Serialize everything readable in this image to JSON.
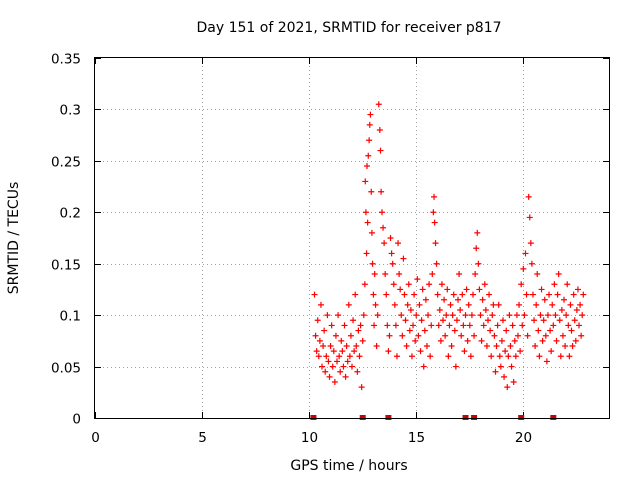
{
  "chart_data": {
    "type": "scatter",
    "title": "Day 151 of 2021, SRMTID for receiver p817",
    "xlabel": "GPS time / hours",
    "ylabel": "SRMTID / TECUs",
    "xlim": [
      0,
      24
    ],
    "ylim": [
      0,
      0.35
    ],
    "x_ticks": [
      0,
      5,
      10,
      15,
      20
    ],
    "x_tick_labels": [
      "0",
      "5",
      "10",
      "15",
      "20"
    ],
    "y_ticks": [
      0,
      0.05,
      0.1,
      0.15,
      0.2,
      0.25,
      0.3,
      0.35
    ],
    "y_tick_labels": [
      "0",
      "0.05",
      "0.1",
      "0.15",
      "0.2",
      "0.25",
      "0.3",
      "0.35"
    ],
    "grid": true,
    "marker": "+",
    "series_color": "#ff0000",
    "marker_color_dark": "#cc0000",
    "baseline_markers": [
      10.2,
      12.5,
      13.7,
      17.3,
      17.7,
      19.9,
      21.4
    ],
    "series": [
      {
        "name": "SRMTID",
        "points": [
          [
            10.25,
            0.12
          ],
          [
            10.3,
            0.08
          ],
          [
            10.35,
            0.065
          ],
          [
            10.4,
            0.095
          ],
          [
            10.45,
            0.06
          ],
          [
            10.5,
            0.075
          ],
          [
            10.55,
            0.11
          ],
          [
            10.6,
            0.05
          ],
          [
            10.65,
            0.07
          ],
          [
            10.7,
            0.085
          ],
          [
            10.75,
            0.045
          ],
          [
            10.8,
            0.06
          ],
          [
            10.85,
            0.1
          ],
          [
            10.9,
            0.055
          ],
          [
            10.95,
            0.04
          ],
          [
            11.0,
            0.07
          ],
          [
            11.05,
            0.09
          ],
          [
            11.1,
            0.05
          ],
          [
            11.15,
            0.065
          ],
          [
            11.2,
            0.035
          ],
          [
            11.25,
            0.08
          ],
          [
            11.3,
            0.055
          ],
          [
            11.35,
            0.1
          ],
          [
            11.4,
            0.06
          ],
          [
            11.45,
            0.045
          ],
          [
            11.5,
            0.075
          ],
          [
            11.55,
            0.065
          ],
          [
            11.6,
            0.05
          ],
          [
            11.65,
            0.09
          ],
          [
            11.7,
            0.04
          ],
          [
            11.75,
            0.07
          ],
          [
            11.8,
            0.055
          ],
          [
            11.85,
            0.11
          ],
          [
            11.9,
            0.06
          ],
          [
            11.95,
            0.08
          ],
          [
            12.0,
            0.05
          ],
          [
            12.05,
            0.095
          ],
          [
            12.1,
            0.065
          ],
          [
            12.15,
            0.12
          ],
          [
            12.2,
            0.07
          ],
          [
            12.25,
            0.045
          ],
          [
            12.3,
            0.085
          ],
          [
            12.35,
            0.06
          ],
          [
            12.4,
            0.09
          ],
          [
            12.45,
            0.03
          ],
          [
            12.5,
            0.075
          ],
          [
            12.55,
            0.1
          ],
          [
            12.6,
            0.13
          ],
          [
            12.62,
            0.23
          ],
          [
            12.65,
            0.2
          ],
          [
            12.68,
            0.16
          ],
          [
            12.7,
            0.245
          ],
          [
            12.73,
            0.19
          ],
          [
            12.76,
            0.255
          ],
          [
            12.8,
            0.27
          ],
          [
            12.83,
            0.285
          ],
          [
            12.86,
            0.295
          ],
          [
            12.9,
            0.22
          ],
          [
            12.93,
            0.18
          ],
          [
            12.96,
            0.15
          ],
          [
            13.0,
            0.12
          ],
          [
            13.03,
            0.09
          ],
          [
            13.06,
            0.14
          ],
          [
            13.1,
            0.11
          ],
          [
            13.15,
            0.07
          ],
          [
            13.2,
            0.1
          ],
          [
            13.25,
            0.305
          ],
          [
            13.3,
            0.28
          ],
          [
            13.33,
            0.26
          ],
          [
            13.36,
            0.22
          ],
          [
            13.4,
            0.2
          ],
          [
            13.45,
            0.185
          ],
          [
            13.5,
            0.17
          ],
          [
            13.55,
            0.14
          ],
          [
            13.6,
            0.12
          ],
          [
            13.65,
            0.09
          ],
          [
            13.7,
            0.065
          ],
          [
            13.75,
            0.08
          ],
          [
            13.8,
            0.175
          ],
          [
            13.85,
            0.16
          ],
          [
            13.9,
            0.15
          ],
          [
            13.95,
            0.13
          ],
          [
            14.0,
            0.11
          ],
          [
            14.05,
            0.09
          ],
          [
            14.1,
            0.06
          ],
          [
            14.15,
            0.17
          ],
          [
            14.2,
            0.14
          ],
          [
            14.25,
            0.125
          ],
          [
            14.3,
            0.1
          ],
          [
            14.35,
            0.08
          ],
          [
            14.4,
            0.155
          ],
          [
            14.45,
            0.12
          ],
          [
            14.5,
            0.095
          ],
          [
            14.55,
            0.07
          ],
          [
            14.6,
            0.11
          ],
          [
            14.65,
            0.13
          ],
          [
            14.7,
            0.085
          ],
          [
            14.75,
            0.105
          ],
          [
            14.8,
            0.06
          ],
          [
            14.85,
            0.09
          ],
          [
            14.9,
            0.12
          ],
          [
            14.95,
            0.075
          ],
          [
            15.0,
            0.1
          ],
          [
            15.05,
            0.135
          ],
          [
            15.1,
            0.08
          ],
          [
            15.15,
            0.11
          ],
          [
            15.2,
            0.065
          ],
          [
            15.25,
            0.095
          ],
          [
            15.3,
            0.125
          ],
          [
            15.35,
            0.05
          ],
          [
            15.4,
            0.085
          ],
          [
            15.45,
            0.115
          ],
          [
            15.5,
            0.07
          ],
          [
            15.55,
            0.1
          ],
          [
            15.6,
            0.13
          ],
          [
            15.65,
            0.06
          ],
          [
            15.7,
            0.09
          ],
          [
            15.75,
            0.14
          ],
          [
            15.8,
            0.2
          ],
          [
            15.83,
            0.215
          ],
          [
            15.86,
            0.19
          ],
          [
            15.9,
            0.17
          ],
          [
            15.95,
            0.15
          ],
          [
            16.0,
            0.12
          ],
          [
            16.05,
            0.09
          ],
          [
            16.1,
            0.105
          ],
          [
            16.15,
            0.075
          ],
          [
            16.2,
            0.13
          ],
          [
            16.25,
            0.095
          ],
          [
            16.3,
            0.115
          ],
          [
            16.35,
            0.08
          ],
          [
            16.4,
            0.1
          ],
          [
            16.45,
            0.125
          ],
          [
            16.5,
            0.06
          ],
          [
            16.55,
            0.09
          ],
          [
            16.6,
            0.11
          ],
          [
            16.65,
            0.07
          ],
          [
            16.7,
            0.1
          ],
          [
            16.75,
            0.12
          ],
          [
            16.8,
            0.085
          ],
          [
            16.85,
            0.05
          ],
          [
            16.9,
            0.095
          ],
          [
            16.95,
            0.115
          ],
          [
            17.0,
            0.14
          ],
          [
            17.05,
            0.105
          ],
          [
            17.1,
            0.08
          ],
          [
            17.15,
            0.12
          ],
          [
            17.2,
            0.09
          ],
          [
            17.25,
            0.065
          ],
          [
            17.3,
            0.1
          ],
          [
            17.35,
            0.125
          ],
          [
            17.4,
            0.075
          ],
          [
            17.45,
            0.11
          ],
          [
            17.5,
            0.09
          ],
          [
            17.55,
            0.06
          ],
          [
            17.6,
            0.1
          ],
          [
            17.65,
            0.12
          ],
          [
            17.7,
            0.08
          ],
          [
            17.75,
            0.14
          ],
          [
            17.8,
            0.165
          ],
          [
            17.85,
            0.18
          ],
          [
            17.9,
            0.15
          ],
          [
            17.95,
            0.125
          ],
          [
            18.0,
            0.1
          ],
          [
            18.05,
            0.075
          ],
          [
            18.1,
            0.115
          ],
          [
            18.15,
            0.09
          ],
          [
            18.2,
            0.13
          ],
          [
            18.25,
            0.105
          ],
          [
            18.3,
            0.07
          ],
          [
            18.35,
            0.095
          ],
          [
            18.4,
            0.12
          ],
          [
            18.45,
            0.085
          ],
          [
            18.5,
            0.06
          ],
          [
            18.55,
            0.1
          ],
          [
            18.6,
            0.11
          ],
          [
            18.65,
            0.08
          ],
          [
            18.7,
            0.045
          ],
          [
            18.75,
            0.07
          ],
          [
            18.8,
            0.09
          ],
          [
            18.85,
            0.11
          ],
          [
            18.9,
            0.06
          ],
          [
            18.95,
            0.05
          ],
          [
            19.0,
            0.075
          ],
          [
            19.05,
            0.095
          ],
          [
            19.1,
            0.04
          ],
          [
            19.15,
            0.065
          ],
          [
            19.2,
            0.085
          ],
          [
            19.25,
            0.03
          ],
          [
            19.3,
            0.06
          ],
          [
            19.35,
            0.1
          ],
          [
            19.4,
            0.07
          ],
          [
            19.45,
            0.05
          ],
          [
            19.5,
            0.09
          ],
          [
            19.55,
            0.035
          ],
          [
            19.6,
            0.075
          ],
          [
            19.65,
            0.06
          ],
          [
            19.7,
            0.1
          ],
          [
            19.75,
            0.08
          ],
          [
            19.8,
            0.11
          ],
          [
            19.85,
            0.065
          ],
          [
            19.9,
            0.13
          ],
          [
            19.95,
            0.09
          ],
          [
            20.0,
            0.145
          ],
          [
            20.05,
            0.1
          ],
          [
            20.1,
            0.16
          ],
          [
            20.15,
            0.12
          ],
          [
            20.2,
            0.08
          ],
          [
            20.25,
            0.215
          ],
          [
            20.3,
            0.195
          ],
          [
            20.35,
            0.17
          ],
          [
            20.4,
            0.15
          ],
          [
            20.45,
            0.12
          ],
          [
            20.5,
            0.095
          ],
          [
            20.55,
            0.07
          ],
          [
            20.6,
            0.11
          ],
          [
            20.65,
            0.14
          ],
          [
            20.7,
            0.085
          ],
          [
            20.75,
            0.06
          ],
          [
            20.8,
            0.1
          ],
          [
            20.85,
            0.125
          ],
          [
            20.9,
            0.075
          ],
          [
            20.95,
            0.095
          ],
          [
            21.0,
            0.115
          ],
          [
            21.05,
            0.08
          ],
          [
            21.1,
            0.055
          ],
          [
            21.15,
            0.1
          ],
          [
            21.2,
            0.12
          ],
          [
            21.25,
            0.085
          ],
          [
            21.3,
            0.065
          ],
          [
            21.35,
            0.11
          ],
          [
            21.4,
            0.09
          ],
          [
            21.45,
            0.13
          ],
          [
            21.5,
            0.1
          ],
          [
            21.55,
            0.075
          ],
          [
            21.6,
            0.12
          ],
          [
            21.65,
            0.14
          ],
          [
            21.7,
            0.095
          ],
          [
            21.75,
            0.06
          ],
          [
            21.8,
            0.105
          ],
          [
            21.85,
            0.08
          ],
          [
            21.9,
            0.115
          ],
          [
            21.95,
            0.07
          ],
          [
            22.0,
            0.1
          ],
          [
            22.05,
            0.13
          ],
          [
            22.1,
            0.09
          ],
          [
            22.15,
            0.06
          ],
          [
            22.2,
            0.11
          ],
          [
            22.25,
            0.085
          ],
          [
            22.3,
            0.07
          ],
          [
            22.35,
            0.12
          ],
          [
            22.4,
            0.095
          ],
          [
            22.45,
            0.075
          ],
          [
            22.5,
            0.105
          ],
          [
            22.55,
            0.125
          ],
          [
            22.6,
            0.09
          ],
          [
            22.65,
            0.11
          ],
          [
            22.7,
            0.08
          ],
          [
            22.75,
            0.1
          ],
          [
            22.8,
            0.12
          ]
        ]
      }
    ]
  }
}
